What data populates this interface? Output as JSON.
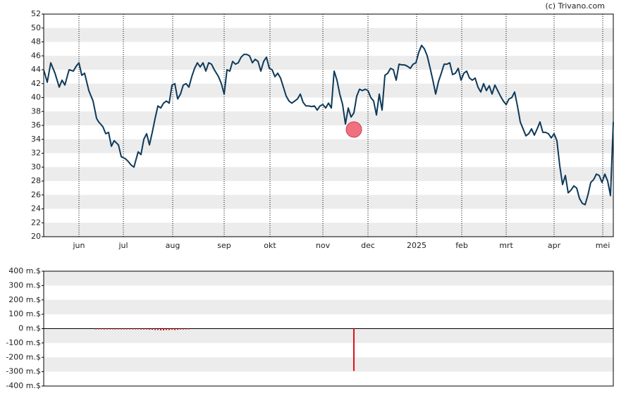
{
  "watermark": "(c) Trivano.com",
  "chart_data": [
    {
      "type": "line",
      "color": "#0e3a5a",
      "xlim": [
        0,
        202
      ],
      "ylim": [
        20,
        52
      ],
      "yticks": [
        20,
        22,
        24,
        26,
        28,
        30,
        32,
        34,
        36,
        38,
        40,
        42,
        44,
        46,
        48,
        50,
        52
      ],
      "xticks": [
        {
          "value": 12.5,
          "label": "jun"
        },
        {
          "value": 28.25,
          "label": "jul"
        },
        {
          "value": 45.75,
          "label": "aug"
        },
        {
          "value": 64,
          "label": "sep"
        },
        {
          "value": 80.25,
          "label": "okt"
        },
        {
          "value": 99,
          "label": "nov"
        },
        {
          "value": 115,
          "label": "dec"
        },
        {
          "value": 132.25,
          "label": "2025"
        },
        {
          "value": 148.25,
          "label": "feb"
        },
        {
          "value": 164,
          "label": "mrt"
        },
        {
          "value": 181,
          "label": "apr"
        },
        {
          "value": 198.25,
          "label": "mei"
        }
      ],
      "x": [
        0,
        1.25,
        2.5,
        4,
        5.5,
        6.5,
        7.5,
        9,
        10.5,
        11.5,
        12.5,
        13.5,
        14.5,
        16,
        17.5,
        18.75,
        19.5,
        21,
        22,
        23,
        24,
        25,
        26.5,
        27.5,
        29,
        30,
        31,
        32,
        33.5,
        34.5,
        35.5,
        36.5,
        37.5,
        38.5,
        39.5,
        40.5,
        41.5,
        42.5,
        43.5,
        44.5,
        45.5,
        46.5,
        47.5,
        48.5,
        49.5,
        50.5,
        51.5,
        52.5,
        53.5,
        54.5,
        55.5,
        56.5,
        57.5,
        58.5,
        59.5,
        60.5,
        62,
        63,
        64,
        65,
        66,
        67,
        68,
        69,
        70,
        71,
        72,
        73,
        74,
        75,
        76,
        77,
        78,
        79,
        80,
        81,
        82,
        83,
        84,
        85,
        86,
        87,
        88,
        89,
        90,
        91,
        92,
        93,
        94,
        95,
        96,
        97,
        98,
        99,
        100,
        101,
        102,
        103,
        104,
        105,
        106,
        107,
        108,
        109,
        110,
        111,
        112,
        113,
        114,
        115,
        116,
        117,
        118,
        119,
        120,
        121,
        122,
        123,
        124,
        125,
        126,
        127,
        128,
        129,
        130,
        131,
        132,
        133,
        134,
        135,
        136,
        137,
        138,
        139,
        140,
        141,
        142,
        143,
        144,
        145,
        146,
        147,
        148,
        149,
        150,
        151,
        152,
        153,
        154,
        155,
        156,
        157,
        158,
        159,
        160,
        161,
        162,
        163,
        164,
        165,
        166,
        167,
        168,
        169,
        170,
        171,
        172,
        173,
        174,
        175,
        176,
        177,
        178,
        179,
        180,
        181,
        182,
        183,
        184,
        185,
        186,
        187,
        188,
        189,
        190,
        191,
        192,
        193,
        194,
        195,
        196,
        197,
        198,
        199,
        200,
        201,
        202
      ],
      "values": [
        44,
        42.2,
        45,
        43.5,
        41.5,
        42.5,
        41.8,
        44,
        43.8,
        44.5,
        45,
        43.2,
        43.5,
        41,
        39.5,
        37,
        36.5,
        35.8,
        34.8,
        35,
        33,
        33.8,
        33.2,
        31.5,
        31.2,
        30.8,
        30.3,
        30,
        32.2,
        31.8,
        34,
        34.8,
        33.2,
        35,
        37,
        38.8,
        38.5,
        39.2,
        39.5,
        39.2,
        41.8,
        42,
        39.8,
        40.5,
        41.8,
        42,
        41.5,
        43,
        44.2,
        45,
        44.4,
        45,
        43.8,
        45,
        44.8,
        44,
        43,
        42,
        40.5,
        44,
        43.8,
        45.2,
        44.8,
        45,
        45.8,
        46.2,
        46.2,
        46,
        45,
        45.5,
        45.2,
        43.8,
        45.2,
        45.8,
        44.2,
        44,
        43,
        43.5,
        42.8,
        41.5,
        40.2,
        39.5,
        39.2,
        39.5,
        39.8,
        40.5,
        39.3,
        38.8,
        38.8,
        38.7,
        38.8,
        38.2,
        38.8,
        39,
        38.5,
        39.2,
        38.5,
        43.8,
        42.5,
        40.5,
        39,
        36.2,
        38.5,
        37.2,
        37.8,
        40.2,
        41.2,
        41,
        41.2,
        41,
        40,
        39.5,
        37.5,
        40.5,
        38.2,
        43.2,
        43.5,
        44.2,
        44,
        42.5,
        44.8,
        44.7,
        44.7,
        44.5,
        44.2,
        44.8,
        45,
        46.5,
        47.5,
        47,
        46,
        44.3,
        42.5,
        40.5,
        42.3,
        43.5,
        44.8,
        44.8,
        45,
        43.3,
        43.5,
        44.2,
        42.5,
        43.5,
        43.8,
        42.8,
        42.5,
        42.8,
        41.5,
        40.8,
        42,
        41,
        41.7,
        40.5,
        41.8,
        41,
        40.2,
        39.5,
        39,
        39.8,
        40,
        40.8,
        38.8,
        36.5,
        35.5,
        34.5,
        34.8,
        35.5,
        34.6,
        35.5,
        36.5,
        35,
        35,
        34.8,
        34.2,
        34.8,
        33.8,
        30.2,
        27.5,
        28.8,
        26.3,
        26.7,
        27.3,
        27,
        25.5,
        24.8,
        24.6,
        26,
        27.8,
        28.2,
        29,
        28.8,
        27.8,
        29,
        28,
        25.9,
        36.5
      ],
      "markers": {
        "x": [
          110
        ],
        "values": [
          35.4
        ],
        "color": "#f07080"
      }
    },
    {
      "type": "bar",
      "color": "#e0101a",
      "xlim": [
        0,
        202
      ],
      "ylim": [
        -400,
        400
      ],
      "yticks": [
        {
          "value": -400,
          "label": "-400 m.$"
        },
        {
          "value": -300,
          "label": "-300 m.$"
        },
        {
          "value": -200,
          "label": "-200 m.$"
        },
        {
          "value": -100,
          "label": "-100 m.$"
        },
        {
          "value": 0,
          "label": "0 m.$"
        },
        {
          "value": 100,
          "label": "100 m.$"
        },
        {
          "value": 200,
          "label": "200 m.$"
        },
        {
          "value": 300,
          "label": "300 m.$"
        },
        {
          "value": 400,
          "label": "400 m.$"
        }
      ],
      "x": [
        18.5,
        19.5,
        20.5,
        21.5,
        22.5,
        23.5,
        24.5,
        25.5,
        26.5,
        27.5,
        28.5,
        29.5,
        30.5,
        31.5,
        32.5,
        33.5,
        34.5,
        35.5,
        36.5,
        37.5,
        38.5,
        39.5,
        40.5,
        41.5,
        42.5,
        43.5,
        44.5,
        45.5,
        46.5,
        47.5,
        48.5,
        49.5,
        50.5,
        51.5,
        110
      ],
      "values": [
        -5,
        -5,
        -5,
        -5,
        -5,
        -5,
        -5,
        -5,
        -5,
        -5,
        -5,
        -5,
        -5,
        -5,
        -5,
        -5,
        -6,
        -6,
        -6,
        -8,
        -8,
        -10,
        -10,
        -12,
        -12,
        -10,
        -10,
        -8,
        -10,
        -8,
        -6,
        -6,
        -5,
        -5,
        -295
      ]
    }
  ]
}
